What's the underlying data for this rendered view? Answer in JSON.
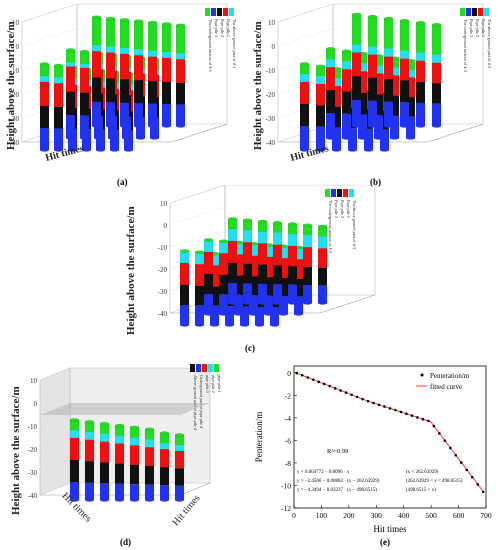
{
  "colors": {
    "top": "#22dd22",
    "cyan": "#22e0ee",
    "red": "#ee1111",
    "black": "#111111",
    "blue": "#2233ee",
    "fit": "#ff3333"
  },
  "panels": [
    {
      "id": "a",
      "label": "(a)",
      "ylabel": "Height above the surface/m",
      "xlabel": "Hit times",
      "ticks": [
        "10",
        "0",
        "-10",
        "-20",
        "-30",
        "-40"
      ],
      "legend": [
        "The underground section of 4-1",
        "Pipe pile 3",
        "Pipe pile 2",
        "Pipe pile 1",
        "The above ground part of 4-1"
      ]
    },
    {
      "id": "b",
      "label": "(b)",
      "ylabel": "Height above the surface/m",
      "xlabel": "Hit times",
      "ticks": [
        "10",
        "0",
        "-10",
        "-20",
        "-30",
        "-40"
      ],
      "legend": [
        "The underground section of 4-2",
        "Pipe pile 3",
        "Pipe pile 2",
        "Pipe pile 1",
        "The above ground part of 4-2"
      ]
    },
    {
      "id": "c",
      "label": "(c)",
      "ylabel": "Height above the surface/m",
      "xlabel": "",
      "ticks": [
        "10",
        "0",
        "-10",
        "-20",
        "-30",
        "-40"
      ],
      "legend": [
        "The underground section of 4-3",
        "Pipe pile 3",
        "Pipe pile 2",
        "Pipe pile 1",
        "The above ground part of 4-3"
      ]
    },
    {
      "id": "d",
      "label": "(d)",
      "ylabel": "Height above the surface/m",
      "xlabel": "Hit times",
      "xlabel2": "Hit times",
      "ticks": [
        "10",
        "0",
        "-10",
        "-20",
        "-30",
        "-40"
      ],
      "legend": [
        "Above ground part of pipe pile 4",
        "Underground part of pipe pile 4",
        "pipe pile 3",
        "pipe pile 2",
        "pipe pile 1"
      ]
    }
  ],
  "panel_e": {
    "label": "(e)"
  },
  "chart_data": {
    "type": "scatter",
    "xlabel": "Hit times",
    "ylabel": "Penteration/m",
    "xlim": [
      0,
      700
    ],
    "ylim": [
      -12,
      0.6
    ],
    "xticks": [
      "0",
      "100",
      "200",
      "300",
      "400",
      "500",
      "600",
      "700"
    ],
    "yticks": [
      "0",
      "-2",
      "-4",
      "-6",
      "-8",
      "-10",
      "-12"
    ],
    "legend": [
      "Penteration/m",
      "fitted curve"
    ],
    "annotation": "R²=0.99",
    "equations": [
      {
        "eq": "y = 0.064772 − 0.0096 ⋅ x",
        "range": "(x < 262.63929)"
      },
      {
        "eq": "y = −2.4566 − 0.00802 ⋅ (x − 262.63929)",
        "range": "(262.63929 < x < 498.6515)"
      },
      {
        "eq": "y = −4.3494 − 0.03237 ⋅ (x − 498.6515)",
        "range": "(498.6515 < x)"
      }
    ],
    "breakpoints": [
      262.63929,
      498.6515
    ],
    "x": [
      10,
      30,
      50,
      70,
      90,
      110,
      130,
      150,
      170,
      190,
      210,
      230,
      250,
      270,
      290,
      310,
      330,
      350,
      370,
      390,
      410,
      430,
      450,
      470,
      490,
      510,
      530,
      550,
      570,
      590,
      610,
      630,
      650,
      670,
      690
    ],
    "y": [
      -0.03,
      -0.22,
      -0.42,
      -0.61,
      -0.8,
      -0.99,
      -1.18,
      -1.38,
      -1.57,
      -1.76,
      -1.95,
      -2.14,
      -2.34,
      -2.52,
      -2.68,
      -2.84,
      -3.0,
      -3.16,
      -3.32,
      -3.48,
      -3.64,
      -3.8,
      -3.96,
      -4.12,
      -4.28,
      -4.73,
      -5.38,
      -6.03,
      -6.68,
      -7.32,
      -7.97,
      -8.62,
      -9.26,
      -9.91,
      -10.56
    ]
  }
}
